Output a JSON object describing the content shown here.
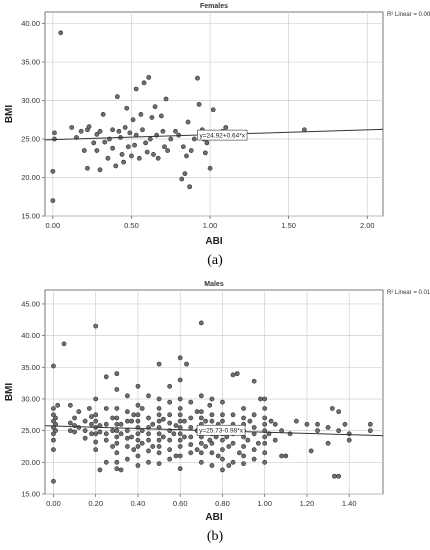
{
  "figure": {
    "captions": [
      "(a)",
      "(b)"
    ]
  },
  "chart_data": [
    {
      "type": "scatter",
      "title": "Females",
      "xlabel": "ABI",
      "ylabel": "BMI",
      "xlim": [
        -0.05,
        2.1
      ],
      "ylim": [
        15,
        41.5
      ],
      "xticks": [
        0.0,
        0.5,
        1.0,
        1.5,
        2.0
      ],
      "xtick_labels": [
        "0.00",
        "0.50",
        "1.00",
        "1.50",
        "2.00"
      ],
      "yticks": [
        15,
        20,
        25,
        30,
        35,
        40
      ],
      "ytick_labels": [
        "15.00",
        "20.00",
        "25.00",
        "30.00",
        "35.00",
        "40.00"
      ],
      "grid": true,
      "r2_label": "R² Linear = 0.004",
      "fit": {
        "intercept": 24.92,
        "slope": 0.64,
        "label": "y=24.92+0.64*x",
        "label_x": 0.92
      },
      "points": [
        [
          0.0,
          17.0
        ],
        [
          0.0,
          20.8
        ],
        [
          0.01,
          25.0
        ],
        [
          0.01,
          25.8
        ],
        [
          0.05,
          38.8
        ],
        [
          0.12,
          26.5
        ],
        [
          0.15,
          25.2
        ],
        [
          0.18,
          26.0
        ],
        [
          0.2,
          23.5
        ],
        [
          0.22,
          21.2
        ],
        [
          0.22,
          26.2
        ],
        [
          0.23,
          26.6
        ],
        [
          0.26,
          24.5
        ],
        [
          0.28,
          25.6
        ],
        [
          0.28,
          23.5
        ],
        [
          0.3,
          21.0
        ],
        [
          0.3,
          26.0
        ],
        [
          0.32,
          28.2
        ],
        [
          0.33,
          24.6
        ],
        [
          0.35,
          22.5
        ],
        [
          0.36,
          25.0
        ],
        [
          0.38,
          23.8
        ],
        [
          0.38,
          26.2
        ],
        [
          0.4,
          21.5
        ],
        [
          0.41,
          30.5
        ],
        [
          0.42,
          26.0
        ],
        [
          0.43,
          25.2
        ],
        [
          0.44,
          23.0
        ],
        [
          0.45,
          22.0
        ],
        [
          0.46,
          26.5
        ],
        [
          0.47,
          29.0
        ],
        [
          0.48,
          24.0
        ],
        [
          0.49,
          25.8
        ],
        [
          0.5,
          22.8
        ],
        [
          0.51,
          27.5
        ],
        [
          0.52,
          24.2
        ],
        [
          0.53,
          31.5
        ],
        [
          0.53,
          25.5
        ],
        [
          0.55,
          22.5
        ],
        [
          0.56,
          28.2
        ],
        [
          0.57,
          26.2
        ],
        [
          0.58,
          32.3
        ],
        [
          0.59,
          24.5
        ],
        [
          0.6,
          23.3
        ],
        [
          0.61,
          33.0
        ],
        [
          0.62,
          25.0
        ],
        [
          0.63,
          27.8
        ],
        [
          0.64,
          23.0
        ],
        [
          0.65,
          29.2
        ],
        [
          0.66,
          25.5
        ],
        [
          0.67,
          22.5
        ],
        [
          0.69,
          28.0
        ],
        [
          0.7,
          26.0
        ],
        [
          0.71,
          24.0
        ],
        [
          0.72,
          30.2
        ],
        [
          0.73,
          23.5
        ],
        [
          0.75,
          25.0
        ],
        [
          0.78,
          26.0
        ],
        [
          0.8,
          25.5
        ],
        [
          0.82,
          19.8
        ],
        [
          0.83,
          24.0
        ],
        [
          0.84,
          20.5
        ],
        [
          0.85,
          22.8
        ],
        [
          0.86,
          27.2
        ],
        [
          0.87,
          18.8
        ],
        [
          0.88,
          23.5
        ],
        [
          0.9,
          25.0
        ],
        [
          0.92,
          32.9
        ],
        [
          0.93,
          29.5
        ],
        [
          0.95,
          26.2
        ],
        [
          0.96,
          25.0
        ],
        [
          0.97,
          23.2
        ],
        [
          0.98,
          24.5
        ],
        [
          1.0,
          21.2
        ],
        [
          1.02,
          28.8
        ],
        [
          1.05,
          25.2
        ],
        [
          1.08,
          26.0
        ],
        [
          1.1,
          26.5
        ],
        [
          1.6,
          26.2
        ]
      ]
    },
    {
      "type": "scatter",
      "title": "Males",
      "xlabel": "ABI",
      "ylabel": "BMI",
      "xlim": [
        -0.04,
        1.56
      ],
      "ylim": [
        15,
        47.2
      ],
      "xticks": [
        0.0,
        0.2,
        0.4,
        0.6,
        0.8,
        1.0,
        1.2,
        1.4
      ],
      "xtick_labels": [
        "0.00",
        "0.20",
        "0.40",
        "0.60",
        "0.80",
        "1.00",
        "1.20",
        "1.40"
      ],
      "yticks": [
        15,
        20,
        25,
        30,
        35,
        40,
        45
      ],
      "ytick_labels": [
        "15.00",
        "20.00",
        "25.00",
        "30.00",
        "35.00",
        "40.00",
        "45.00"
      ],
      "grid": true,
      "r2_label": "R² Linear = 0.010",
      "fit": {
        "intercept": 25.73,
        "slope": -0.98,
        "label": "y=25.73-0.98*x",
        "label_x": 0.68
      },
      "points": [
        [
          0.0,
          17.0
        ],
        [
          0.0,
          35.2
        ],
        [
          0.0,
          23.5
        ],
        [
          0.0,
          24.5
        ],
        [
          0.0,
          25.5
        ],
        [
          0.0,
          26.5
        ],
        [
          0.0,
          27.5
        ],
        [
          0.0,
          28.5
        ],
        [
          0.0,
          22.0
        ],
        [
          0.01,
          25.0
        ],
        [
          0.01,
          26.0
        ],
        [
          0.01,
          27.0
        ],
        [
          0.02,
          29.0
        ],
        [
          0.05,
          38.7
        ],
        [
          0.08,
          25.0
        ],
        [
          0.08,
          26.2
        ],
        [
          0.08,
          29.0
        ],
        [
          0.1,
          24.8
        ],
        [
          0.1,
          25.8
        ],
        [
          0.1,
          27.0
        ],
        [
          0.12,
          25.5
        ],
        [
          0.12,
          28.0
        ],
        [
          0.15,
          23.8
        ],
        [
          0.15,
          25.0
        ],
        [
          0.15,
          26.5
        ],
        [
          0.17,
          28.5
        ],
        [
          0.18,
          24.5
        ],
        [
          0.18,
          26.0
        ],
        [
          0.18,
          27.2
        ],
        [
          0.2,
          41.5
        ],
        [
          0.2,
          22.0
        ],
        [
          0.2,
          23.2
        ],
        [
          0.2,
          24.5
        ],
        [
          0.2,
          25.5
        ],
        [
          0.2,
          26.5
        ],
        [
          0.2,
          27.5
        ],
        [
          0.2,
          30.0
        ],
        [
          0.22,
          18.8
        ],
        [
          0.22,
          24.8
        ],
        [
          0.22,
          25.8
        ],
        [
          0.25,
          20.0
        ],
        [
          0.25,
          23.5
        ],
        [
          0.25,
          24.5
        ],
        [
          0.25,
          26.0
        ],
        [
          0.25,
          28.5
        ],
        [
          0.25,
          33.5
        ],
        [
          0.28,
          22.5
        ],
        [
          0.28,
          25.0
        ],
        [
          0.28,
          27.0
        ],
        [
          0.3,
          19.0
        ],
        [
          0.3,
          20.0
        ],
        [
          0.3,
          21.5
        ],
        [
          0.3,
          23.0
        ],
        [
          0.3,
          24.0
        ],
        [
          0.3,
          25.0
        ],
        [
          0.3,
          26.0
        ],
        [
          0.3,
          27.0
        ],
        [
          0.3,
          28.5
        ],
        [
          0.3,
          31.5
        ],
        [
          0.3,
          34.0
        ],
        [
          0.32,
          18.8
        ],
        [
          0.32,
          24.5
        ],
        [
          0.32,
          26.0
        ],
        [
          0.35,
          20.5
        ],
        [
          0.35,
          22.5
        ],
        [
          0.35,
          23.8
        ],
        [
          0.35,
          25.0
        ],
        [
          0.35,
          26.5
        ],
        [
          0.35,
          28.0
        ],
        [
          0.35,
          30.5
        ],
        [
          0.37,
          24.0
        ],
        [
          0.37,
          26.5
        ],
        [
          0.38,
          22.0
        ],
        [
          0.38,
          27.5
        ],
        [
          0.4,
          19.5
        ],
        [
          0.4,
          21.0
        ],
        [
          0.4,
          22.5
        ],
        [
          0.4,
          23.5
        ],
        [
          0.4,
          24.5
        ],
        [
          0.4,
          25.5
        ],
        [
          0.4,
          26.5
        ],
        [
          0.4,
          27.5
        ],
        [
          0.4,
          29.0
        ],
        [
          0.4,
          32.0
        ],
        [
          0.42,
          23.0
        ],
        [
          0.42,
          25.0
        ],
        [
          0.42,
          28.5
        ],
        [
          0.45,
          20.0
        ],
        [
          0.45,
          21.8
        ],
        [
          0.45,
          23.5
        ],
        [
          0.45,
          24.5
        ],
        [
          0.45,
          25.5
        ],
        [
          0.45,
          27.0
        ],
        [
          0.45,
          30.5
        ],
        [
          0.47,
          22.5
        ],
        [
          0.47,
          26.0
        ],
        [
          0.5,
          19.8
        ],
        [
          0.5,
          21.5
        ],
        [
          0.5,
          22.5
        ],
        [
          0.5,
          23.5
        ],
        [
          0.5,
          24.5
        ],
        [
          0.5,
          25.5
        ],
        [
          0.5,
          26.5
        ],
        [
          0.5,
          27.5
        ],
        [
          0.5,
          28.5
        ],
        [
          0.5,
          30.0
        ],
        [
          0.5,
          35.5
        ],
        [
          0.52,
          24.0
        ],
        [
          0.52,
          26.8
        ],
        [
          0.55,
          20.5
        ],
        [
          0.55,
          22.0
        ],
        [
          0.55,
          23.5
        ],
        [
          0.55,
          25.0
        ],
        [
          0.55,
          26.2
        ],
        [
          0.55,
          27.5
        ],
        [
          0.55,
          29.5
        ],
        [
          0.55,
          32.0
        ],
        [
          0.57,
          24.5
        ],
        [
          0.58,
          21.0
        ],
        [
          0.58,
          25.8
        ],
        [
          0.6,
          19.0
        ],
        [
          0.6,
          21.0
        ],
        [
          0.6,
          22.5
        ],
        [
          0.6,
          23.5
        ],
        [
          0.6,
          24.5
        ],
        [
          0.6,
          25.5
        ],
        [
          0.6,
          26.5
        ],
        [
          0.6,
          27.5
        ],
        [
          0.6,
          28.5
        ],
        [
          0.6,
          30.0
        ],
        [
          0.6,
          33.0
        ],
        [
          0.6,
          36.5
        ],
        [
          0.62,
          24.0
        ],
        [
          0.62,
          26.5
        ],
        [
          0.63,
          35.5
        ],
        [
          0.65,
          21.5
        ],
        [
          0.65,
          22.8
        ],
        [
          0.65,
          24.0
        ],
        [
          0.65,
          25.5
        ],
        [
          0.65,
          27.0
        ],
        [
          0.65,
          29.5
        ],
        [
          0.68,
          22.0
        ],
        [
          0.68,
          25.0
        ],
        [
          0.68,
          28.0
        ],
        [
          0.7,
          20.0
        ],
        [
          0.7,
          21.5
        ],
        [
          0.7,
          23.0
        ],
        [
          0.7,
          24.0
        ],
        [
          0.7,
          25.0
        ],
        [
          0.7,
          26.0
        ],
        [
          0.7,
          27.0
        ],
        [
          0.7,
          28.0
        ],
        [
          0.7,
          30.5
        ],
        [
          0.7,
          42.0
        ],
        [
          0.72,
          22.5
        ],
        [
          0.72,
          26.5
        ],
        [
          0.74,
          23.5
        ],
        [
          0.74,
          29.0
        ],
        [
          0.75,
          19.5
        ],
        [
          0.75,
          21.5
        ],
        [
          0.75,
          23.0
        ],
        [
          0.75,
          24.5
        ],
        [
          0.75,
          25.5
        ],
        [
          0.75,
          26.5
        ],
        [
          0.75,
          27.5
        ],
        [
          0.75,
          30.0
        ],
        [
          0.77,
          24.0
        ],
        [
          0.78,
          21.0
        ],
        [
          0.78,
          26.0
        ],
        [
          0.8,
          18.8
        ],
        [
          0.8,
          20.5
        ],
        [
          0.8,
          22.0
        ],
        [
          0.8,
          23.5
        ],
        [
          0.8,
          24.5
        ],
        [
          0.8,
          25.5
        ],
        [
          0.8,
          26.5
        ],
        [
          0.8,
          27.5
        ],
        [
          0.8,
          29.5
        ],
        [
          0.82,
          24.0
        ],
        [
          0.83,
          19.5
        ],
        [
          0.83,
          22.5
        ],
        [
          0.85,
          20.0
        ],
        [
          0.85,
          23.0
        ],
        [
          0.85,
          24.5
        ],
        [
          0.85,
          26.0
        ],
        [
          0.85,
          27.5
        ],
        [
          0.85,
          33.8
        ],
        [
          0.87,
          34.0
        ],
        [
          0.88,
          21.5
        ],
        [
          0.88,
          25.5
        ],
        [
          0.9,
          19.8
        ],
        [
          0.9,
          21.0
        ],
        [
          0.9,
          22.5
        ],
        [
          0.9,
          24.0
        ],
        [
          0.9,
          25.0
        ],
        [
          0.9,
          26.0
        ],
        [
          0.9,
          27.0
        ],
        [
          0.9,
          28.5
        ],
        [
          0.92,
          23.5
        ],
        [
          0.93,
          26.5
        ],
        [
          0.95,
          20.5
        ],
        [
          0.95,
          22.0
        ],
        [
          0.95,
          24.5
        ],
        [
          0.95,
          25.5
        ],
        [
          0.95,
          27.5
        ],
        [
          0.95,
          32.8
        ],
        [
          0.97,
          23.0
        ],
        [
          0.98,
          30.0
        ],
        [
          1.0,
          20.0
        ],
        [
          1.0,
          21.5
        ],
        [
          1.0,
          23.0
        ],
        [
          1.0,
          24.0
        ],
        [
          1.0,
          25.0
        ],
        [
          1.0,
          26.0
        ],
        [
          1.0,
          27.0
        ],
        [
          1.0,
          28.5
        ],
        [
          1.0,
          30.0
        ],
        [
          1.02,
          24.5
        ],
        [
          1.03,
          26.5
        ],
        [
          1.05,
          23.5
        ],
        [
          1.05,
          26.0
        ],
        [
          1.08,
          21.0
        ],
        [
          1.08,
          25.0
        ],
        [
          1.1,
          21.0
        ],
        [
          1.12,
          24.5
        ],
        [
          1.15,
          26.5
        ],
        [
          1.2,
          26.0
        ],
        [
          1.22,
          21.8
        ],
        [
          1.25,
          25.0
        ],
        [
          1.25,
          26.0
        ],
        [
          1.3,
          23.0
        ],
        [
          1.3,
          25.5
        ],
        [
          1.32,
          28.5
        ],
        [
          1.33,
          17.8
        ],
        [
          1.35,
          17.8
        ],
        [
          1.35,
          25.0
        ],
        [
          1.35,
          28.0
        ],
        [
          1.38,
          26.0
        ],
        [
          1.4,
          24.5
        ],
        [
          1.4,
          23.5
        ],
        [
          1.5,
          25.0
        ],
        [
          1.5,
          26.0
        ]
      ]
    }
  ]
}
